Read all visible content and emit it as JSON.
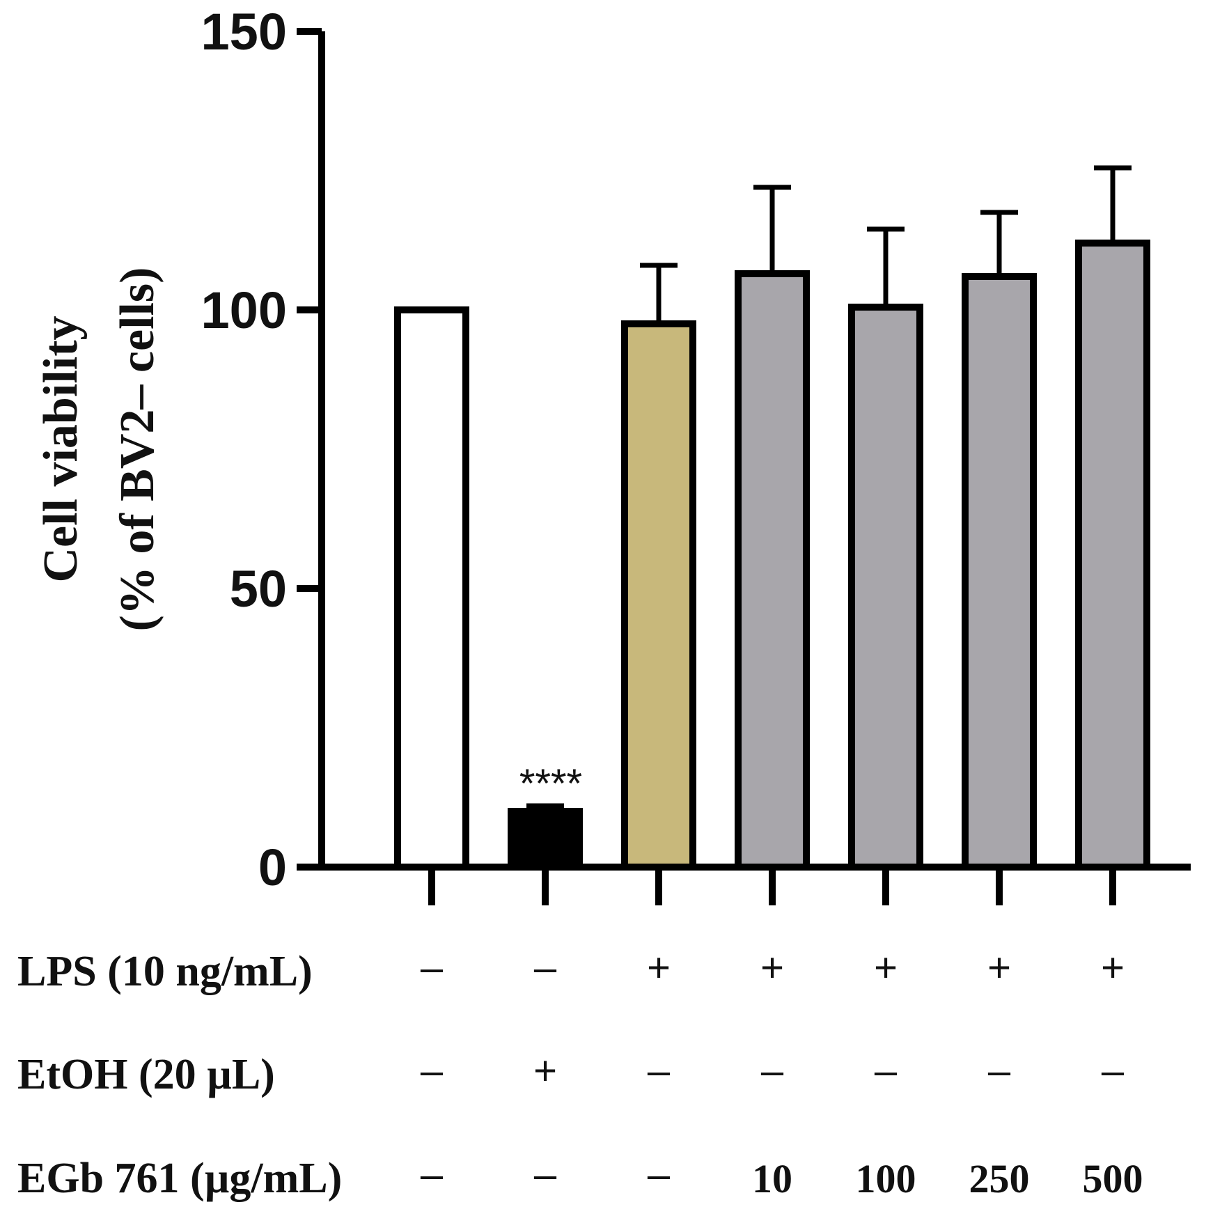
{
  "chart_data": {
    "type": "bar",
    "title": "",
    "ylabel": [
      "Cell viability",
      "(% of BV2– cells)"
    ],
    "xlabel": "",
    "ylim": [
      0,
      150
    ],
    "yticks": [
      0,
      50,
      100,
      150
    ],
    "ytick_labels": [
      "0",
      "50",
      "100",
      "150"
    ],
    "grid": false,
    "bars": [
      {
        "value": 100,
        "error": null,
        "color": "#ffffff",
        "annotation": null
      },
      {
        "value": 10,
        "error": 1,
        "color": "#000000",
        "annotation": "****"
      },
      {
        "value": 97.5,
        "error": 10.5,
        "color": "#c8b87b",
        "annotation": null
      },
      {
        "value": 106.5,
        "error": 15.5,
        "color": "#a8a6ab",
        "annotation": null
      },
      {
        "value": 100.5,
        "error": 14,
        "color": "#a8a6ab",
        "annotation": null
      },
      {
        "value": 106,
        "error": 11.5,
        "color": "#a8a6ab",
        "annotation": null
      },
      {
        "value": 112,
        "error": 13.5,
        "color": "#a8a6ab",
        "annotation": null
      }
    ],
    "condition_table": [
      {
        "label": "LPS (10 ng/mL)",
        "values": [
          "–",
          "–",
          "+",
          "+",
          "+",
          "+",
          "+"
        ]
      },
      {
        "label": "EtOH (20 µL)",
        "values": [
          "–",
          "+",
          "–",
          "–",
          "–",
          "–",
          "–"
        ]
      },
      {
        "label": "EGb 761 (µg/mL)",
        "values": [
          "–",
          "–",
          "–",
          "10",
          "100",
          "250",
          "500"
        ]
      }
    ]
  }
}
